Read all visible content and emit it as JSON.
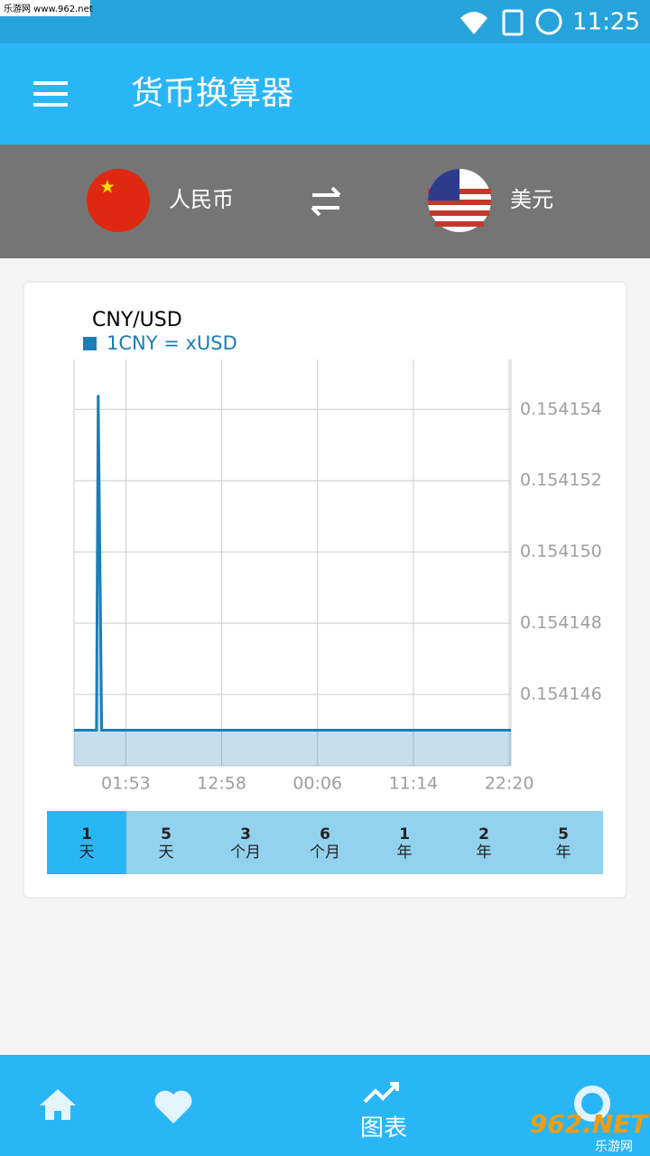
{
  "status_bar": {
    "time": "11:25"
  },
  "watermark": {
    "top": "乐游网 www.962.net",
    "bottom_logo": "962.NET",
    "bottom_text": "乐游网"
  },
  "app_bar": {
    "title": "货币换算器"
  },
  "currency_bar": {
    "from": "人民币",
    "to": "美元"
  },
  "chart_data": {
    "type": "line",
    "title": "CNY/USD",
    "x": [
      0,
      2.6,
      2.8,
      3.2,
      50.6
    ],
    "series": [
      {
        "name": "1CNY = xUSD",
        "color": "#1a7db8",
        "values": [
          0.154145,
          0.154145,
          0.1541544,
          0.154145,
          0.154145
        ]
      }
    ],
    "xlim": [
      0,
      50.6
    ],
    "xticks": [
      {
        "value": 6,
        "label": "01:53"
      },
      {
        "value": 17.1,
        "label": "12:58"
      },
      {
        "value": 28.2,
        "label": "00:06"
      },
      {
        "value": 39.3,
        "label": "11:14"
      },
      {
        "value": 50.4,
        "label": "22:20"
      }
    ],
    "ylim": [
      0.154144,
      0.1541554
    ],
    "yticks": [
      0.154146,
      0.154148,
      {
        "value": 0.15415,
        "label": "0.154150"
      },
      0.154152,
      0.154154
    ],
    "grid": true
  },
  "periods": {
    "selected": 0,
    "items": [
      {
        "num": "1",
        "unit": "天"
      },
      {
        "num": "5",
        "unit": "天"
      },
      {
        "num": "3",
        "unit": "个月"
      },
      {
        "num": "6",
        "unit": "个月"
      },
      {
        "num": "1",
        "unit": "年"
      },
      {
        "num": "2",
        "unit": "年"
      },
      {
        "num": "5",
        "unit": "年"
      }
    ]
  },
  "bottom_nav": {
    "chart": "图表"
  }
}
